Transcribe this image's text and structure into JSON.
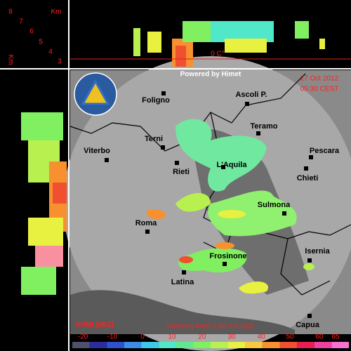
{
  "header": {
    "credit": "Powered by Himet",
    "date": "27 Oct 2012",
    "time": "05:30 CEST"
  },
  "height_axis": {
    "unit_top": "Km",
    "unit_left": "Km",
    "ticks": [
      "8",
      "7",
      "6",
      "5",
      "4",
      "3"
    ]
  },
  "freezing_marker": "0 C°",
  "cities": [
    {
      "label": "Foligno"
    },
    {
      "label": "Ascoli P."
    },
    {
      "label": "Teramo"
    },
    {
      "label": "Terni"
    },
    {
      "label": "Pescara"
    },
    {
      "label": "Viterbo"
    },
    {
      "label": "Rieti"
    },
    {
      "label": "L'Aquila"
    },
    {
      "label": "Chieti"
    },
    {
      "label": "Sulmona"
    },
    {
      "label": "Roma"
    },
    {
      "label": "Frosinone"
    },
    {
      "label": "Isernia"
    },
    {
      "label": "Latina"
    },
    {
      "label": "Capua"
    }
  ],
  "legend": {
    "title": "NVMI [dBZ]",
    "freezing_level": "Freezing level 2.80 Km (asl)",
    "scale_labels": [
      "-20",
      "-10",
      "0",
      "10",
      "20",
      "30",
      "40",
      "50",
      "60",
      "65"
    ],
    "colors": [
      "#50506a",
      "#2c2c9c",
      "#3050d0",
      "#3c8ce8",
      "#40c8e8",
      "#50e8c8",
      "#60e890",
      "#80f060",
      "#b8f050",
      "#e8f040",
      "#f8c840",
      "#f89030",
      "#f05030",
      "#e82050",
      "#f040a0",
      "#f870d0"
    ]
  }
}
